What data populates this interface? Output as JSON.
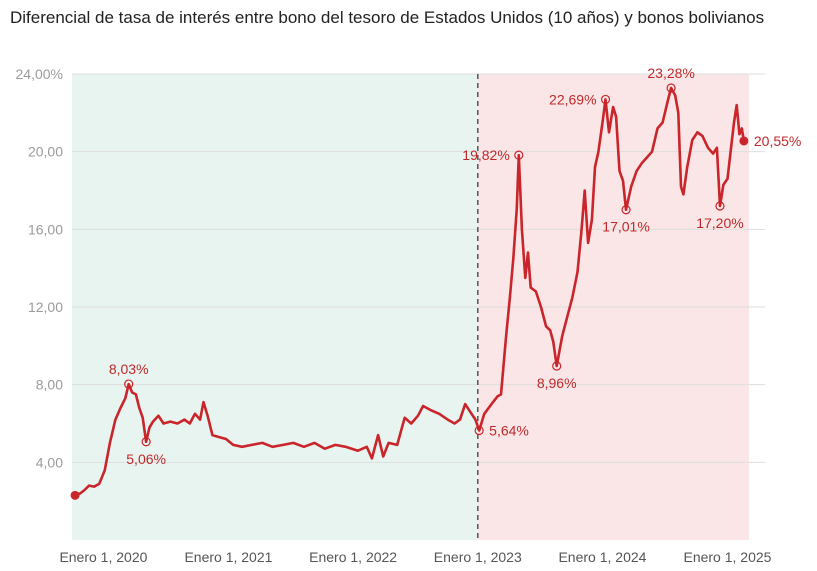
{
  "chart_data": {
    "type": "line",
    "title": "Diferencial de tasa de interés entre bono del tesoro de Estados Unidos (10 años) y bonos bolivianos",
    "xlabel": "",
    "ylabel": "",
    "ylim": [
      0,
      24
    ],
    "y_ticks": [
      "4,00",
      "8,00",
      "12,00",
      "16,00",
      "20,00",
      "24,00%"
    ],
    "y_tick_values": [
      4,
      8,
      12,
      16,
      20,
      24
    ],
    "x_ticks": [
      "Enero 1, 2020",
      "Enero 1, 2021",
      "Enero 1, 2022",
      "Enero 1, 2023",
      "Enero 1, 2024",
      "Enero 1, 2025"
    ],
    "x_tick_values": [
      "2020-01-01",
      "2021-01-01",
      "2022-01-01",
      "2023-01-01",
      "2024-01-01",
      "2025-01-01"
    ],
    "xlim": [
      "2019-10-01",
      "2025-03-05"
    ],
    "grid": true,
    "regions": [
      {
        "from": "2019-10-01",
        "to": "2023-01-01",
        "color": "#e7f4f0"
      },
      {
        "from": "2023-01-01",
        "to": "2025-03-05",
        "color": "#fae6e6"
      }
    ],
    "divider": "2023-01-01",
    "series": [
      {
        "color": "#c9252b",
        "points": [
          [
            "2019-10-10",
            2.3
          ],
          [
            "2019-10-25",
            2.4
          ],
          [
            "2019-11-05",
            2.55
          ],
          [
            "2019-11-20",
            2.8
          ],
          [
            "2019-12-05",
            2.75
          ],
          [
            "2019-12-20",
            2.9
          ],
          [
            "2020-01-05",
            3.6
          ],
          [
            "2020-01-20",
            5.0
          ],
          [
            "2020-02-05",
            6.2
          ],
          [
            "2020-02-20",
            6.8
          ],
          [
            "2020-03-05",
            7.3
          ],
          [
            "2020-03-15",
            8.03
          ],
          [
            "2020-03-25",
            7.6
          ],
          [
            "2020-04-05",
            7.5
          ],
          [
            "2020-04-15",
            6.8
          ],
          [
            "2020-04-25",
            6.3
          ],
          [
            "2020-05-05",
            5.06
          ],
          [
            "2020-05-15",
            5.8
          ],
          [
            "2020-05-25",
            6.1
          ],
          [
            "2020-06-10",
            6.4
          ],
          [
            "2020-06-25",
            6.0
          ],
          [
            "2020-07-15",
            6.1
          ],
          [
            "2020-08-05",
            6.0
          ],
          [
            "2020-08-25",
            6.2
          ],
          [
            "2020-09-10",
            6.0
          ],
          [
            "2020-09-25",
            6.5
          ],
          [
            "2020-10-10",
            6.2
          ],
          [
            "2020-10-20",
            7.1
          ],
          [
            "2020-11-01",
            6.4
          ],
          [
            "2020-11-15",
            5.4
          ],
          [
            "2020-12-05",
            5.3
          ],
          [
            "2020-12-25",
            5.2
          ],
          [
            "2021-01-15",
            4.9
          ],
          [
            "2021-02-10",
            4.8
          ],
          [
            "2021-03-10",
            4.9
          ],
          [
            "2021-04-10",
            5.0
          ],
          [
            "2021-05-10",
            4.8
          ],
          [
            "2021-06-10",
            4.9
          ],
          [
            "2021-07-10",
            5.0
          ],
          [
            "2021-08-10",
            4.8
          ],
          [
            "2021-09-10",
            5.0
          ],
          [
            "2021-10-10",
            4.7
          ],
          [
            "2021-11-10",
            4.9
          ],
          [
            "2021-12-10",
            4.8
          ],
          [
            "2022-01-15",
            4.6
          ],
          [
            "2022-02-10",
            4.8
          ],
          [
            "2022-02-25",
            4.2
          ],
          [
            "2022-03-15",
            5.4
          ],
          [
            "2022-03-30",
            4.3
          ],
          [
            "2022-04-15",
            5.0
          ],
          [
            "2022-05-10",
            4.9
          ],
          [
            "2022-06-01",
            6.3
          ],
          [
            "2022-06-20",
            6.0
          ],
          [
            "2022-07-10",
            6.4
          ],
          [
            "2022-07-25",
            6.9
          ],
          [
            "2022-08-15",
            6.7
          ],
          [
            "2022-09-10",
            6.5
          ],
          [
            "2022-10-05",
            6.2
          ],
          [
            "2022-10-25",
            6.0
          ],
          [
            "2022-11-10",
            6.2
          ],
          [
            "2022-11-25",
            7.0
          ],
          [
            "2022-12-10",
            6.6
          ],
          [
            "2022-12-25",
            6.2
          ],
          [
            "2023-01-05",
            5.64
          ],
          [
            "2023-01-20",
            6.5
          ],
          [
            "2023-02-10",
            7.0
          ],
          [
            "2023-02-28",
            7.4
          ],
          [
            "2023-03-10",
            7.5
          ],
          [
            "2023-03-25",
            10.5
          ],
          [
            "2023-04-05",
            12.5
          ],
          [
            "2023-04-15",
            14.5
          ],
          [
            "2023-04-25",
            17.0
          ],
          [
            "2023-05-01",
            19.82
          ],
          [
            "2023-05-10",
            16.0
          ],
          [
            "2023-05-20",
            13.5
          ],
          [
            "2023-05-28",
            14.8
          ],
          [
            "2023-06-05",
            13.0
          ],
          [
            "2023-06-20",
            12.8
          ],
          [
            "2023-07-05",
            12.0
          ],
          [
            "2023-07-20",
            11.0
          ],
          [
            "2023-08-01",
            10.8
          ],
          [
            "2023-08-10",
            10.2
          ],
          [
            "2023-08-20",
            8.96
          ],
          [
            "2023-09-05",
            10.5
          ],
          [
            "2023-09-20",
            11.5
          ],
          [
            "2023-10-05",
            12.5
          ],
          [
            "2023-10-20",
            13.8
          ],
          [
            "2023-11-01",
            16.0
          ],
          [
            "2023-11-10",
            18.0
          ],
          [
            "2023-11-20",
            15.3
          ],
          [
            "2023-12-01",
            16.5
          ],
          [
            "2023-12-10",
            19.2
          ],
          [
            "2023-12-20",
            20.0
          ],
          [
            "2024-01-01",
            21.5
          ],
          [
            "2024-01-10",
            22.69
          ],
          [
            "2024-01-20",
            21.0
          ],
          [
            "2024-02-01",
            22.3
          ],
          [
            "2024-02-10",
            21.8
          ],
          [
            "2024-02-20",
            19.0
          ],
          [
            "2024-03-01",
            18.5
          ],
          [
            "2024-03-10",
            17.01
          ],
          [
            "2024-03-25",
            18.2
          ],
          [
            "2024-04-10",
            19.0
          ],
          [
            "2024-04-25",
            19.4
          ],
          [
            "2024-05-10",
            19.7
          ],
          [
            "2024-05-25",
            20.0
          ],
          [
            "2024-06-10",
            21.2
          ],
          [
            "2024-06-25",
            21.5
          ],
          [
            "2024-07-10",
            22.6
          ],
          [
            "2024-07-20",
            23.28
          ],
          [
            "2024-08-01",
            22.9
          ],
          [
            "2024-08-10",
            22.0
          ],
          [
            "2024-08-18",
            18.2
          ],
          [
            "2024-08-25",
            17.8
          ],
          [
            "2024-09-05",
            19.2
          ],
          [
            "2024-09-20",
            20.6
          ],
          [
            "2024-10-05",
            21.0
          ],
          [
            "2024-10-20",
            20.8
          ],
          [
            "2024-11-05",
            20.2
          ],
          [
            "2024-11-20",
            19.9
          ],
          [
            "2024-12-01",
            20.2
          ],
          [
            "2024-12-10",
            17.2
          ],
          [
            "2024-12-20",
            18.3
          ],
          [
            "2025-01-01",
            18.6
          ],
          [
            "2025-01-10",
            20.0
          ],
          [
            "2025-01-20",
            21.5
          ],
          [
            "2025-01-28",
            22.4
          ],
          [
            "2025-02-05",
            20.9
          ],
          [
            "2025-02-12",
            21.2
          ],
          [
            "2025-02-18",
            20.55
          ]
        ]
      }
    ],
    "annotations": [
      {
        "x": "2020-03-15",
        "y": 8.03,
        "label": "8,03%",
        "pos": "above"
      },
      {
        "x": "2020-05-05",
        "y": 5.06,
        "label": "5,06%",
        "pos": "below"
      },
      {
        "x": "2023-01-05",
        "y": 5.64,
        "label": "5,64%",
        "pos": "right"
      },
      {
        "x": "2023-05-01",
        "y": 19.82,
        "label": "19,82%",
        "pos": "left"
      },
      {
        "x": "2023-08-20",
        "y": 8.96,
        "label": "8,96%",
        "pos": "below"
      },
      {
        "x": "2024-01-10",
        "y": 22.69,
        "label": "22,69%",
        "pos": "left"
      },
      {
        "x": "2024-03-10",
        "y": 17.01,
        "label": "17,01%",
        "pos": "below"
      },
      {
        "x": "2024-07-20",
        "y": 23.28,
        "label": "23,28%",
        "pos": "above"
      },
      {
        "x": "2024-12-10",
        "y": 17.2,
        "label": "17,20%",
        "pos": "below"
      },
      {
        "x": "2025-02-18",
        "y": 20.55,
        "label": "20,55%",
        "pos": "right"
      }
    ]
  }
}
